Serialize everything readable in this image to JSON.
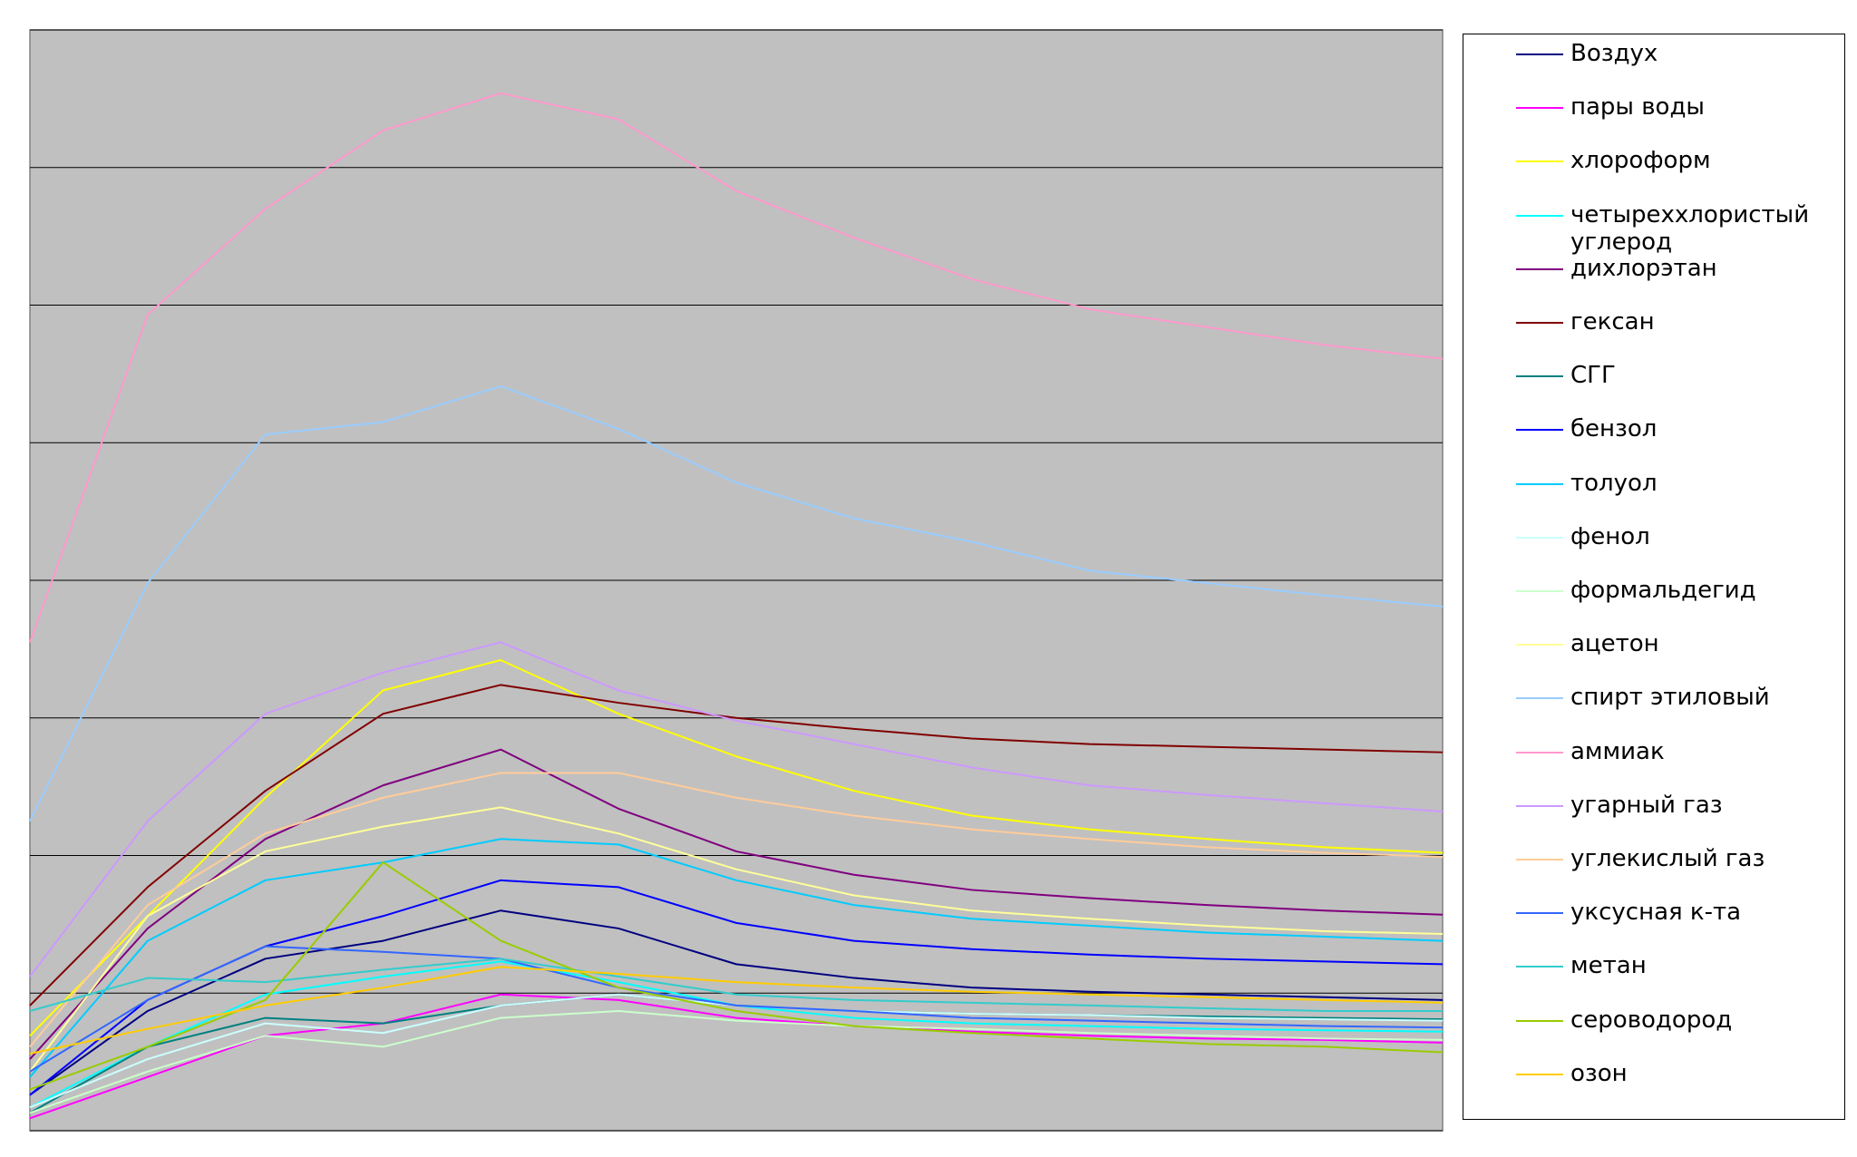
{
  "chart_data": {
    "type": "line",
    "x": [
      0,
      1,
      2,
      3,
      4,
      5,
      6,
      7,
      8,
      9,
      10,
      11,
      12
    ],
    "xlim": [
      0,
      12
    ],
    "ylim": [
      0,
      8
    ],
    "yticks": [
      0,
      1,
      2,
      3,
      4,
      5,
      6,
      7,
      8
    ],
    "grid": true,
    "legend": "right",
    "series": [
      {
        "name": "Воздух",
        "color": "#000080",
        "values": [
          0.26,
          0.87,
          1.25,
          1.38,
          1.6,
          1.47,
          1.21,
          1.11,
          1.04,
          1.01,
          0.99,
          0.97,
          0.95
        ]
      },
      {
        "name": "пары воды",
        "color": "#ff00ff",
        "values": [
          0.09,
          0.39,
          0.69,
          0.78,
          0.99,
          0.95,
          0.82,
          0.76,
          0.72,
          0.69,
          0.67,
          0.66,
          0.64
        ]
      },
      {
        "name": "хлороформ",
        "color": "#ffff00",
        "values": [
          0.69,
          1.56,
          2.42,
          3.2,
          3.42,
          3.03,
          2.72,
          2.47,
          2.29,
          2.19,
          2.12,
          2.06,
          2.02
        ]
      },
      {
        "name": "четыреххлористый углерод",
        "color": "#00ffff",
        "values": [
          0.17,
          0.61,
          0.99,
          1.12,
          1.23,
          1.08,
          0.91,
          0.82,
          0.78,
          0.76,
          0.74,
          0.73,
          0.72
        ]
      },
      {
        "name": "дихлорэтан",
        "color": "#800080",
        "values": [
          0.52,
          1.47,
          2.12,
          2.51,
          2.77,
          2.34,
          2.03,
          1.86,
          1.75,
          1.69,
          1.64,
          1.6,
          1.57
        ]
      },
      {
        "name": "гексан",
        "color": "#800000",
        "values": [
          0.91,
          1.77,
          2.47,
          3.03,
          3.24,
          3.11,
          3.0,
          2.92,
          2.85,
          2.81,
          2.79,
          2.77,
          2.75
        ]
      },
      {
        "name": "СГГ",
        "color": "#008080",
        "values": [
          0.13,
          0.61,
          0.82,
          0.78,
          0.91,
          0.99,
          0.91,
          0.87,
          0.85,
          0.84,
          0.83,
          0.82,
          0.81
        ]
      },
      {
        "name": "бензол",
        "color": "#0000ff",
        "values": [
          0.26,
          0.95,
          1.34,
          1.56,
          1.82,
          1.77,
          1.51,
          1.38,
          1.32,
          1.28,
          1.25,
          1.23,
          1.21
        ]
      },
      {
        "name": "толуол",
        "color": "#00ccff",
        "values": [
          0.39,
          1.38,
          1.82,
          1.95,
          2.12,
          2.08,
          1.82,
          1.64,
          1.54,
          1.49,
          1.44,
          1.41,
          1.38
        ]
      },
      {
        "name": "фенол",
        "color": "#ccffff",
        "values": [
          0.17,
          0.52,
          0.78,
          0.71,
          0.91,
          0.99,
          0.91,
          0.87,
          0.85,
          0.84,
          0.82,
          0.81,
          0.8
        ]
      },
      {
        "name": "формальдегид",
        "color": "#ccffcc",
        "values": [
          0.13,
          0.43,
          0.69,
          0.61,
          0.82,
          0.87,
          0.8,
          0.76,
          0.74,
          0.71,
          0.69,
          0.67,
          0.66
        ]
      },
      {
        "name": "ацетон",
        "color": "#ffff99",
        "values": [
          0.43,
          1.56,
          2.03,
          2.21,
          2.35,
          2.16,
          1.9,
          1.71,
          1.6,
          1.54,
          1.49,
          1.45,
          1.43
        ]
      },
      {
        "name": "спирт этиловый",
        "color": "#99ccff",
        "values": [
          2.25,
          3.98,
          5.06,
          5.15,
          5.41,
          5.1,
          4.71,
          4.45,
          4.28,
          4.07,
          3.98,
          3.89,
          3.81
        ]
      },
      {
        "name": "аммиак",
        "color": "#ff99cc",
        "values": [
          3.55,
          5.93,
          6.7,
          7.27,
          7.54,
          7.35,
          6.83,
          6.49,
          6.19,
          5.97,
          5.84,
          5.71,
          5.61
        ]
      },
      {
        "name": "угарный газ",
        "color": "#cc99ff",
        "values": [
          1.12,
          2.25,
          3.03,
          3.33,
          3.55,
          3.2,
          2.98,
          2.81,
          2.64,
          2.51,
          2.44,
          2.38,
          2.32
        ]
      },
      {
        "name": "углекислый газ",
        "color": "#ffcc99",
        "values": [
          0.61,
          1.64,
          2.16,
          2.42,
          2.6,
          2.6,
          2.42,
          2.29,
          2.19,
          2.12,
          2.06,
          2.02,
          1.99
        ]
      },
      {
        "name": "уксусная к-та",
        "color": "#3366ff",
        "values": [
          0.43,
          0.95,
          1.34,
          1.3,
          1.25,
          1.04,
          0.91,
          0.87,
          0.82,
          0.8,
          0.78,
          0.76,
          0.75
        ]
      },
      {
        "name": "метан",
        "color": "#33cccc",
        "values": [
          0.87,
          1.11,
          1.08,
          1.17,
          1.25,
          1.12,
          0.99,
          0.95,
          0.93,
          0.91,
          0.89,
          0.87,
          0.87
        ]
      },
      {
        "name": "сероводород",
        "color": "#99cc00",
        "values": [
          0.3,
          0.61,
          0.95,
          1.95,
          1.38,
          1.04,
          0.87,
          0.76,
          0.71,
          0.67,
          0.63,
          0.61,
          0.57
        ]
      },
      {
        "name": "озон",
        "color": "#ffcc00",
        "values": [
          0.56,
          0.74,
          0.91,
          1.04,
          1.19,
          1.14,
          1.08,
          1.04,
          1.01,
          0.99,
          0.97,
          0.95,
          0.93
        ]
      }
    ]
  }
}
